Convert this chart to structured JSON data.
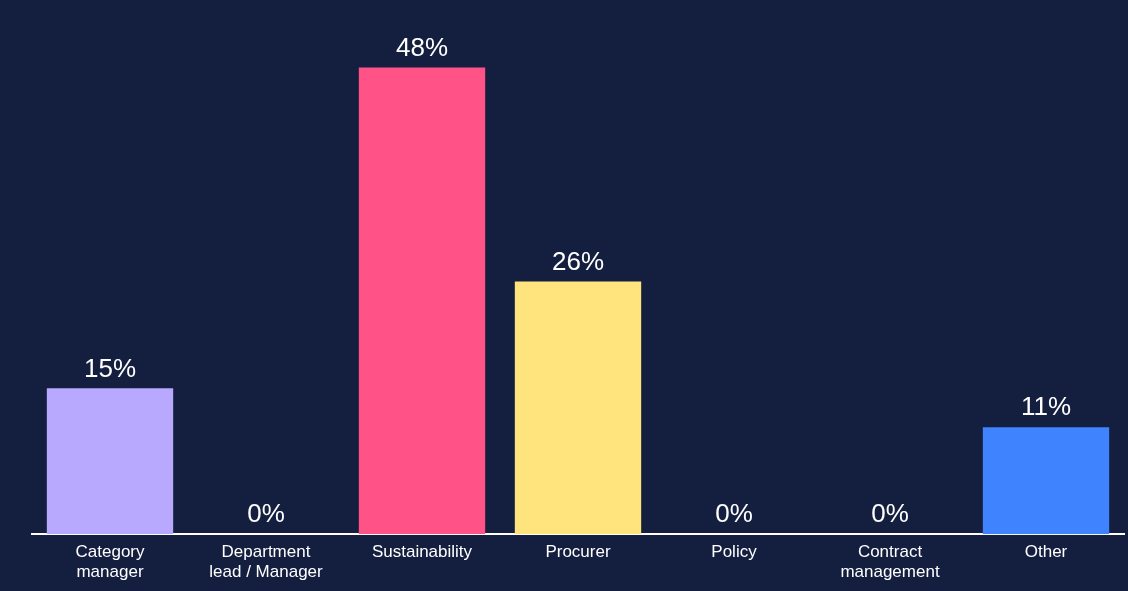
{
  "chart_data": {
    "type": "bar",
    "categories": [
      "Category manager",
      "Department lead / Manager",
      "Sustainability",
      "Procurer",
      "Policy",
      "Contract management",
      "Other"
    ],
    "values": [
      15,
      0,
      48,
      26,
      0,
      0,
      11
    ],
    "colors": [
      "#b8a9ff",
      "#b8a9ff",
      "#ff5287",
      "#ffe47d",
      "#ffe47d",
      "#3f83ff",
      "#3f83ff"
    ],
    "value_labels": [
      "15%",
      "0%",
      "48%",
      "26%",
      "0%",
      "0%",
      "11%"
    ],
    "grid": false,
    "legend": false
  }
}
